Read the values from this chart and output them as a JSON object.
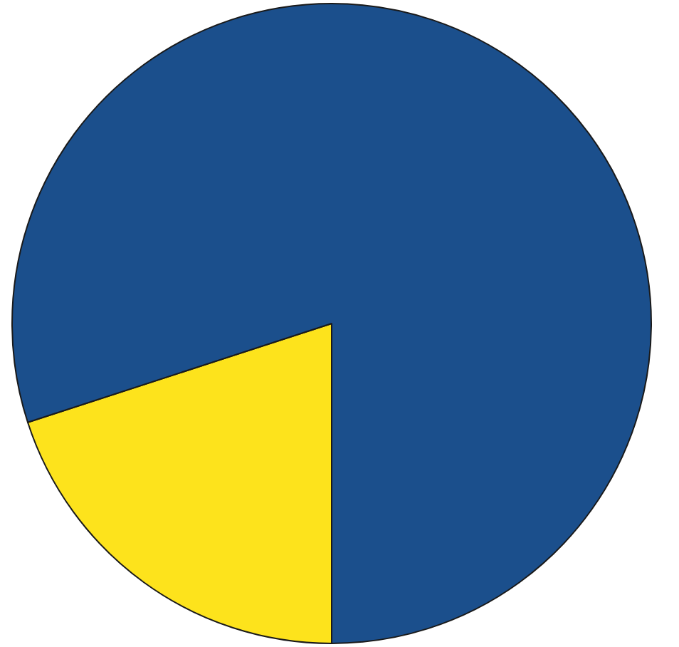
{
  "chart_data": {
    "type": "pie",
    "categories": [
      null,
      null
    ],
    "values": [
      20,
      80
    ],
    "colors": [
      "#fde31c",
      "#1b4f8c"
    ],
    "legend": false
  }
}
